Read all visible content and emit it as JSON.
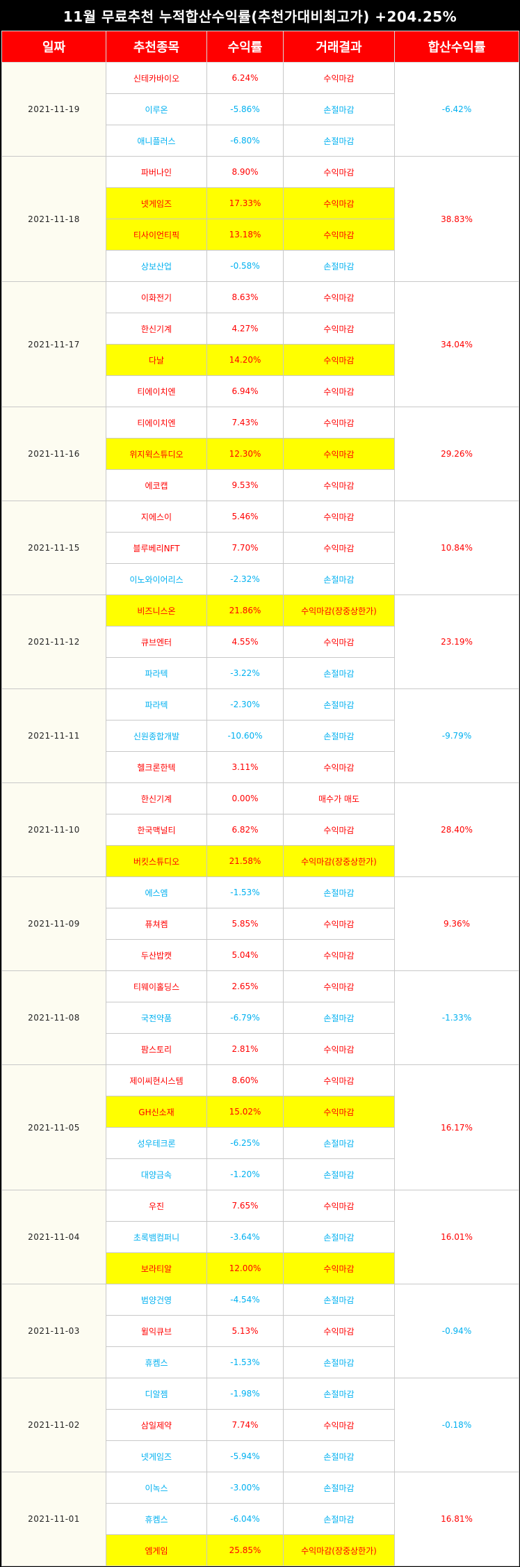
{
  "title": "11월 무료추천 누적합산수익률(추천가대비최고가) +204.25%",
  "headers": [
    "일짜",
    "추천종목",
    "수익률",
    "거래결과",
    "합산수익률"
  ],
  "colors": {
    "header_bg": "#ff0000",
    "highlight": "#ffff00",
    "gain": "#ff0000",
    "loss": "#00b0f0",
    "date_bg": "#fdfcf1"
  },
  "groups": [
    {
      "date": "2021-11-19",
      "total": "-6.42%",
      "total_color": "blue",
      "rows": [
        {
          "name": "신테카바이오",
          "rate": "6.24%",
          "result": "수익마감",
          "color": "red",
          "hl": false
        },
        {
          "name": "이루온",
          "rate": "-5.86%",
          "result": "손절마감",
          "color": "blue",
          "hl": false
        },
        {
          "name": "애니플러스",
          "rate": "-6.80%",
          "result": "손절마감",
          "color": "blue",
          "hl": false
        }
      ]
    },
    {
      "date": "2021-11-18",
      "total": "38.83%",
      "total_color": "red",
      "rows": [
        {
          "name": "파버나인",
          "rate": "8.90%",
          "result": "수익마감",
          "color": "red",
          "hl": false
        },
        {
          "name": "넷게임즈",
          "rate": "17.33%",
          "result": "수익마감",
          "color": "red",
          "hl": true
        },
        {
          "name": "티사이언티픽",
          "rate": "13.18%",
          "result": "수익마감",
          "color": "red",
          "hl": true
        },
        {
          "name": "상보산업",
          "rate": "-0.58%",
          "result": "손절마감",
          "color": "blue",
          "hl": false
        }
      ]
    },
    {
      "date": "2021-11-17",
      "total": "34.04%",
      "total_color": "red",
      "rows": [
        {
          "name": "이화전기",
          "rate": "8.63%",
          "result": "수익마감",
          "color": "red",
          "hl": false
        },
        {
          "name": "한신기계",
          "rate": "4.27%",
          "result": "수익마감",
          "color": "red",
          "hl": false
        },
        {
          "name": "다날",
          "rate": "14.20%",
          "result": "수익마감",
          "color": "red",
          "hl": true
        },
        {
          "name": "티에이치엔",
          "rate": "6.94%",
          "result": "수익마감",
          "color": "red",
          "hl": false
        }
      ]
    },
    {
      "date": "2021-11-16",
      "total": "29.26%",
      "total_color": "red",
      "rows": [
        {
          "name": "티에이치엔",
          "rate": "7.43%",
          "result": "수익마감",
          "color": "red",
          "hl": false
        },
        {
          "name": "위지윅스튜디오",
          "rate": "12.30%",
          "result": "수익마감",
          "color": "red",
          "hl": true
        },
        {
          "name": "에코캡",
          "rate": "9.53%",
          "result": "수익마감",
          "color": "red",
          "hl": false
        }
      ]
    },
    {
      "date": "2021-11-15",
      "total": "10.84%",
      "total_color": "red",
      "rows": [
        {
          "name": "지에스이",
          "rate": "5.46%",
          "result": "수익마감",
          "color": "red",
          "hl": false
        },
        {
          "name": "블루베리NFT",
          "rate": "7.70%",
          "result": "수익마감",
          "color": "red",
          "hl": false
        },
        {
          "name": "이노와이어리스",
          "rate": "-2.32%",
          "result": "손절마감",
          "color": "blue",
          "hl": false
        }
      ]
    },
    {
      "date": "2021-11-12",
      "total": "23.19%",
      "total_color": "red",
      "rows": [
        {
          "name": "비즈니스온",
          "rate": "21.86%",
          "result": "수익마감(장중상한가)",
          "color": "red",
          "hl": true
        },
        {
          "name": "큐브엔터",
          "rate": "4.55%",
          "result": "수익마감",
          "color": "red",
          "hl": false
        },
        {
          "name": "파라텍",
          "rate": "-3.22%",
          "result": "손절마감",
          "color": "blue",
          "hl": false
        }
      ]
    },
    {
      "date": "2021-11-11",
      "total": "-9.79%",
      "total_color": "blue",
      "rows": [
        {
          "name": "파라텍",
          "rate": "-2.30%",
          "result": "손절마감",
          "color": "blue",
          "hl": false
        },
        {
          "name": "신원종합개발",
          "rate": "-10.60%",
          "result": "손절마감",
          "color": "blue",
          "hl": false
        },
        {
          "name": "헬크론한텍",
          "rate": "3.11%",
          "result": "수익마감",
          "color": "red",
          "hl": false
        }
      ]
    },
    {
      "date": "2021-11-10",
      "total": "28.40%",
      "total_color": "red",
      "rows": [
        {
          "name": "한신기계",
          "rate": "0.00%",
          "result": "매수가 매도",
          "color": "red",
          "hl": false
        },
        {
          "name": "한국맥널티",
          "rate": "6.82%",
          "result": "수익마감",
          "color": "red",
          "hl": false
        },
        {
          "name": "버킷스튜디오",
          "rate": "21.58%",
          "result": "수익마감(장중상한가)",
          "color": "red",
          "hl": true
        }
      ]
    },
    {
      "date": "2021-11-09",
      "total": "9.36%",
      "total_color": "red",
      "rows": [
        {
          "name": "에스엠",
          "rate": "-1.53%",
          "result": "손절마감",
          "color": "blue",
          "hl": false
        },
        {
          "name": "퓨쳐켐",
          "rate": "5.85%",
          "result": "수익마감",
          "color": "red",
          "hl": false
        },
        {
          "name": "두산밥캣",
          "rate": "5.04%",
          "result": "수익마감",
          "color": "red",
          "hl": false
        }
      ]
    },
    {
      "date": "2021-11-08",
      "total": "-1.33%",
      "total_color": "blue",
      "rows": [
        {
          "name": "티웨이홀딩스",
          "rate": "2.65%",
          "result": "수익마감",
          "color": "red",
          "hl": false
        },
        {
          "name": "국전약품",
          "rate": "-6.79%",
          "result": "손절마감",
          "color": "blue",
          "hl": false
        },
        {
          "name": "팜스토리",
          "rate": "2.81%",
          "result": "수익마감",
          "color": "red",
          "hl": false
        }
      ]
    },
    {
      "date": "2021-11-05",
      "total": "16.17%",
      "total_color": "red",
      "rows": [
        {
          "name": "제이씨현시스템",
          "rate": "8.60%",
          "result": "수익마감",
          "color": "red",
          "hl": false
        },
        {
          "name": "GH신소재",
          "rate": "15.02%",
          "result": "수익마감",
          "color": "red",
          "hl": true
        },
        {
          "name": "성우테크론",
          "rate": "-6.25%",
          "result": "손절마감",
          "color": "blue",
          "hl": false
        },
        {
          "name": "대양금속",
          "rate": "-1.20%",
          "result": "손절마감",
          "color": "blue",
          "hl": false
        }
      ]
    },
    {
      "date": "2021-11-04",
      "total": "16.01%",
      "total_color": "red",
      "rows": [
        {
          "name": "우진",
          "rate": "7.65%",
          "result": "수익마감",
          "color": "red",
          "hl": false
        },
        {
          "name": "초록뱀컴퍼니",
          "rate": "-3.64%",
          "result": "손절마감",
          "color": "blue",
          "hl": false
        },
        {
          "name": "보라티알",
          "rate": "12.00%",
          "result": "수익마감",
          "color": "red",
          "hl": true
        }
      ]
    },
    {
      "date": "2021-11-03",
      "total": "-0.94%",
      "total_color": "blue",
      "rows": [
        {
          "name": "범양건영",
          "rate": "-4.54%",
          "result": "손절마감",
          "color": "blue",
          "hl": false
        },
        {
          "name": "윌익큐브",
          "rate": "5.13%",
          "result": "수익마감",
          "color": "red",
          "hl": false
        },
        {
          "name": "휴켐스",
          "rate": "-1.53%",
          "result": "손절마감",
          "color": "blue",
          "hl": false
        }
      ]
    },
    {
      "date": "2021-11-02",
      "total": "-0.18%",
      "total_color": "blue",
      "rows": [
        {
          "name": "디알젬",
          "rate": "-1.98%",
          "result": "손절마감",
          "color": "blue",
          "hl": false
        },
        {
          "name": "삼일제약",
          "rate": "7.74%",
          "result": "수익마감",
          "color": "red",
          "hl": false
        },
        {
          "name": "넷게임즈",
          "rate": "-5.94%",
          "result": "손절마감",
          "color": "blue",
          "hl": false
        }
      ]
    },
    {
      "date": "2021-11-01",
      "total": "16.81%",
      "total_color": "red",
      "rows": [
        {
          "name": "이녹스",
          "rate": "-3.00%",
          "result": "손절마감",
          "color": "blue",
          "hl": false
        },
        {
          "name": "휴켐스",
          "rate": "-6.04%",
          "result": "손절마감",
          "color": "blue",
          "hl": false
        },
        {
          "name": "엠게임",
          "rate": "25.85%",
          "result": "수익마감(장중상한가)",
          "color": "red",
          "hl": true
        }
      ]
    }
  ]
}
